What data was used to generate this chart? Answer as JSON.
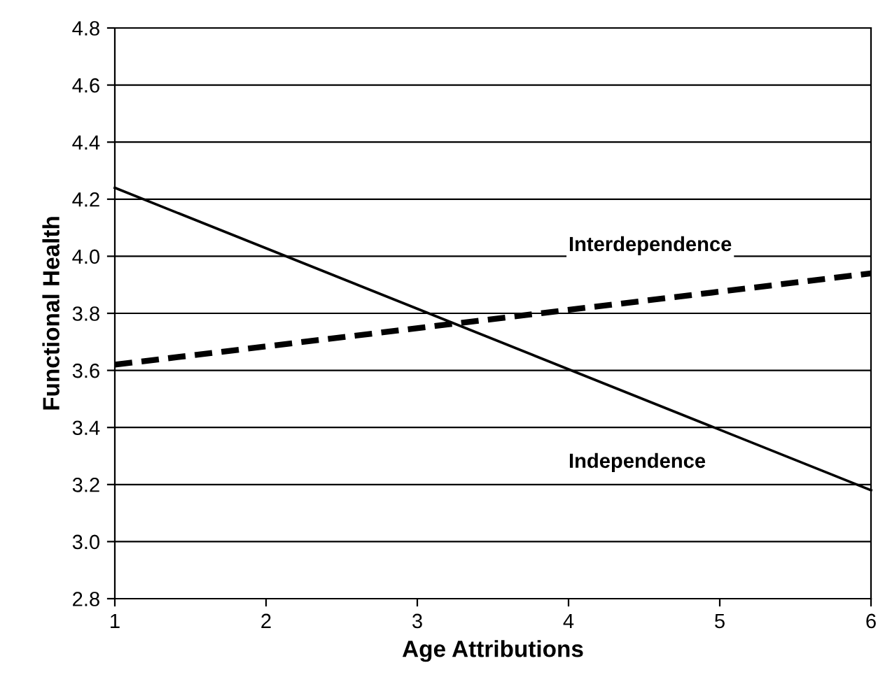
{
  "chart_data": {
    "type": "line",
    "xlabel": "Age Attributions",
    "ylabel": "Functional Health",
    "x": [
      1,
      6
    ],
    "series": [
      {
        "name": "Interdependence",
        "color": "#000000",
        "values": [
          3.62,
          3.94
        ],
        "line_style": "dashed"
      },
      {
        "name": "Independence",
        "color": "#000000",
        "values": [
          4.24,
          3.18
        ],
        "line_style": "solid"
      }
    ],
    "xlim": [
      1,
      6
    ],
    "xticks": [
      1,
      2,
      3,
      4,
      5,
      6
    ],
    "ylim": [
      2.8,
      4.8
    ],
    "yticks": [
      {
        "value": 2.8,
        "label": "2.8"
      },
      {
        "value": 3.0,
        "label": "3.0"
      },
      {
        "value": 3.2,
        "label": "3.2"
      },
      {
        "value": 3.4,
        "label": "3.4"
      },
      {
        "value": 3.6,
        "label": "3.6"
      },
      {
        "value": 3.8,
        "label": "3.8"
      },
      {
        "value": 4.0,
        "label": "4.0"
      },
      {
        "value": 4.2,
        "label": "4.2"
      },
      {
        "value": 4.4,
        "label": "4.4"
      },
      {
        "value": 4.6,
        "label": "4.6"
      },
      {
        "value": 4.8,
        "label": "4.8"
      }
    ],
    "grid": "y",
    "legend": false
  }
}
